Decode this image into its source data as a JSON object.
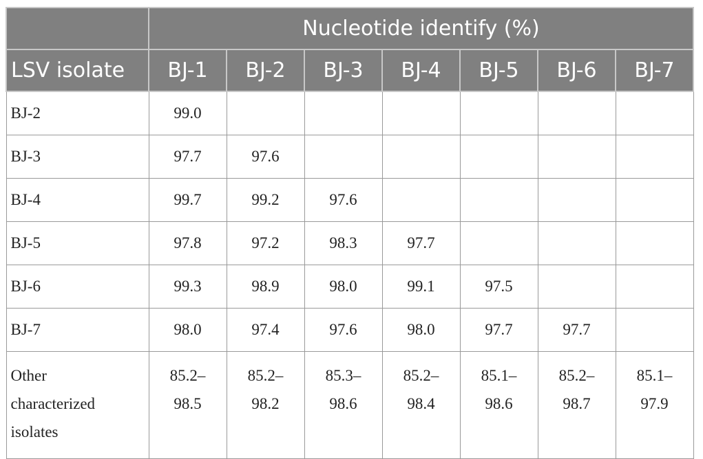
{
  "header": {
    "title": "Nucleotide identify (%)",
    "row_label": "LSV isolate",
    "columns": [
      "BJ-1",
      "BJ-2",
      "BJ-3",
      "BJ-4",
      "BJ-5",
      "BJ-6",
      "BJ-7"
    ]
  },
  "table": {
    "rows": [
      {
        "label": "BJ-2",
        "values": [
          "99.0"
        ]
      },
      {
        "label": "BJ-3",
        "values": [
          "97.7",
          "97.6"
        ]
      },
      {
        "label": "BJ-4",
        "values": [
          "99.7",
          "99.2",
          "97.6"
        ]
      },
      {
        "label": "BJ-5",
        "values": [
          "97.8",
          "97.2",
          "98.3",
          "97.7"
        ]
      },
      {
        "label": "BJ-6",
        "values": [
          "99.3",
          "98.9",
          "98.0",
          "99.1",
          "97.5"
        ]
      },
      {
        "label": "BJ-7",
        "values": [
          "98.0",
          "97.4",
          "97.6",
          "98.0",
          "97.7",
          "97.7"
        ]
      },
      {
        "label": "Other characterized isolates",
        "values": [
          "85.2–98.5",
          "85.2–98.2",
          "85.3–98.6",
          "85.2–98.4",
          "85.1–98.6",
          "85.2–98.7",
          "85.1–97.9"
        ]
      }
    ]
  }
}
